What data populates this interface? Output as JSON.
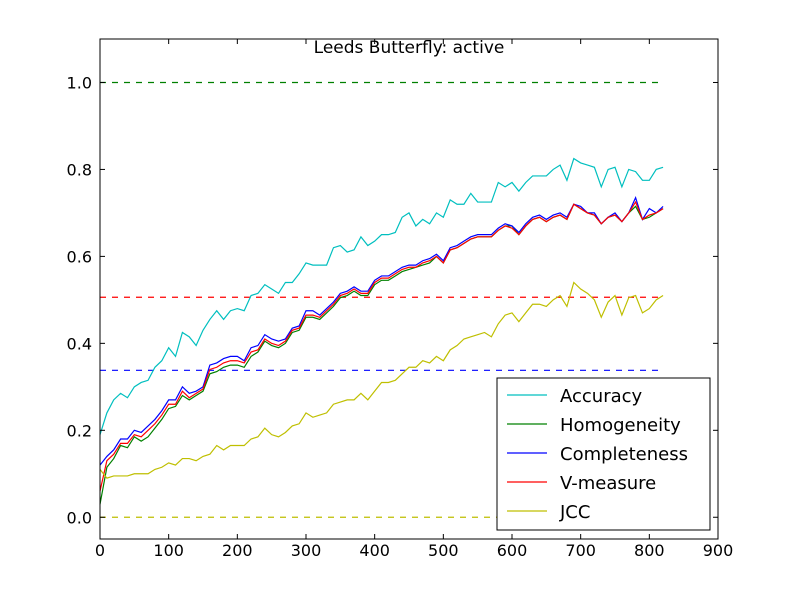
{
  "chart_data": {
    "type": "line",
    "title": "Leeds Butterfly: active",
    "x": [
      0,
      10,
      20,
      30,
      40,
      50,
      60,
      70,
      80,
      90,
      100,
      110,
      120,
      130,
      140,
      150,
      160,
      170,
      180,
      190,
      200,
      210,
      220,
      230,
      240,
      250,
      260,
      270,
      280,
      290,
      300,
      310,
      320,
      330,
      340,
      350,
      360,
      370,
      380,
      390,
      400,
      410,
      420,
      430,
      440,
      450,
      460,
      470,
      480,
      490,
      500,
      510,
      520,
      530,
      540,
      550,
      560,
      570,
      580,
      590,
      600,
      610,
      620,
      630,
      640,
      650,
      660,
      670,
      680,
      690,
      700,
      710,
      720,
      730,
      740,
      750,
      760,
      770,
      780,
      790,
      800,
      810,
      820
    ],
    "series": [
      {
        "name": "Accuracy",
        "color": "#00bfbf",
        "values": [
          0.19,
          0.24,
          0.27,
          0.285,
          0.275,
          0.3,
          0.31,
          0.315,
          0.345,
          0.36,
          0.39,
          0.37,
          0.425,
          0.415,
          0.395,
          0.43,
          0.455,
          0.475,
          0.455,
          0.475,
          0.48,
          0.475,
          0.51,
          0.515,
          0.535,
          0.525,
          0.515,
          0.54,
          0.54,
          0.56,
          0.585,
          0.58,
          0.58,
          0.58,
          0.62,
          0.625,
          0.61,
          0.615,
          0.645,
          0.625,
          0.635,
          0.65,
          0.65,
          0.655,
          0.69,
          0.7,
          0.67,
          0.685,
          0.675,
          0.7,
          0.69,
          0.73,
          0.72,
          0.72,
          0.745,
          0.725,
          0.725,
          0.725,
          0.77,
          0.76,
          0.77,
          0.75,
          0.77,
          0.785,
          0.785,
          0.785,
          0.8,
          0.81,
          0.775,
          0.825,
          0.815,
          0.81,
          0.805,
          0.76,
          0.8,
          0.805,
          0.76,
          0.8,
          0.795,
          0.775,
          0.775,
          0.8,
          0.805
        ]
      },
      {
        "name": "Homogeneity",
        "color": "#008000",
        "values": [
          0.03,
          0.115,
          0.135,
          0.165,
          0.16,
          0.185,
          0.175,
          0.185,
          0.205,
          0.225,
          0.25,
          0.255,
          0.28,
          0.27,
          0.28,
          0.29,
          0.33,
          0.335,
          0.345,
          0.35,
          0.35,
          0.345,
          0.37,
          0.38,
          0.405,
          0.395,
          0.39,
          0.4,
          0.425,
          0.43,
          0.46,
          0.46,
          0.455,
          0.47,
          0.485,
          0.505,
          0.51,
          0.52,
          0.51,
          0.51,
          0.535,
          0.545,
          0.545,
          0.555,
          0.565,
          0.57,
          0.575,
          0.58,
          0.585,
          0.6,
          0.585,
          0.615,
          0.62,
          0.63,
          0.64,
          0.645,
          0.645,
          0.645,
          0.66,
          0.67,
          0.67,
          0.65,
          0.67,
          0.685,
          0.69,
          0.68,
          0.69,
          0.695,
          0.685,
          0.72,
          0.71,
          0.7,
          0.695,
          0.675,
          0.69,
          0.695,
          0.68,
          0.7,
          0.715,
          0.685,
          0.69,
          0.7,
          0.71
        ]
      },
      {
        "name": "Completeness",
        "color": "#0000ff",
        "values": [
          0.12,
          0.14,
          0.155,
          0.18,
          0.18,
          0.2,
          0.195,
          0.21,
          0.225,
          0.245,
          0.27,
          0.27,
          0.3,
          0.285,
          0.29,
          0.3,
          0.35,
          0.355,
          0.365,
          0.37,
          0.37,
          0.36,
          0.39,
          0.395,
          0.42,
          0.41,
          0.405,
          0.41,
          0.435,
          0.44,
          0.475,
          0.475,
          0.465,
          0.48,
          0.495,
          0.515,
          0.52,
          0.53,
          0.52,
          0.52,
          0.545,
          0.555,
          0.555,
          0.565,
          0.575,
          0.58,
          0.58,
          0.59,
          0.595,
          0.605,
          0.59,
          0.62,
          0.625,
          0.635,
          0.645,
          0.65,
          0.65,
          0.65,
          0.665,
          0.675,
          0.67,
          0.655,
          0.675,
          0.69,
          0.695,
          0.685,
          0.695,
          0.7,
          0.69,
          0.72,
          0.715,
          0.7,
          0.7,
          0.675,
          0.69,
          0.7,
          0.68,
          0.7,
          0.735,
          0.685,
          0.71,
          0.7,
          0.715
        ]
      },
      {
        "name": "V-measure",
        "color": "#ff0000",
        "values": [
          0.06,
          0.13,
          0.145,
          0.17,
          0.17,
          0.19,
          0.185,
          0.2,
          0.215,
          0.235,
          0.26,
          0.26,
          0.29,
          0.275,
          0.285,
          0.295,
          0.34,
          0.345,
          0.355,
          0.36,
          0.36,
          0.355,
          0.38,
          0.385,
          0.41,
          0.4,
          0.395,
          0.405,
          0.43,
          0.435,
          0.465,
          0.465,
          0.46,
          0.475,
          0.49,
          0.51,
          0.515,
          0.525,
          0.515,
          0.515,
          0.54,
          0.55,
          0.55,
          0.56,
          0.57,
          0.575,
          0.575,
          0.585,
          0.59,
          0.6,
          0.585,
          0.615,
          0.62,
          0.63,
          0.64,
          0.645,
          0.645,
          0.645,
          0.66,
          0.67,
          0.665,
          0.65,
          0.67,
          0.685,
          0.69,
          0.68,
          0.69,
          0.695,
          0.685,
          0.72,
          0.71,
          0.7,
          0.695,
          0.675,
          0.69,
          0.695,
          0.68,
          0.7,
          0.725,
          0.685,
          0.695,
          0.7,
          0.71
        ]
      },
      {
        "name": "JCC",
        "color": "#bfbf00",
        "values": [
          0.11,
          0.09,
          0.095,
          0.095,
          0.095,
          0.1,
          0.1,
          0.1,
          0.11,
          0.115,
          0.125,
          0.12,
          0.135,
          0.135,
          0.13,
          0.14,
          0.145,
          0.165,
          0.155,
          0.165,
          0.165,
          0.165,
          0.18,
          0.185,
          0.205,
          0.19,
          0.185,
          0.195,
          0.21,
          0.215,
          0.24,
          0.23,
          0.235,
          0.24,
          0.26,
          0.265,
          0.27,
          0.27,
          0.285,
          0.27,
          0.29,
          0.31,
          0.31,
          0.315,
          0.33,
          0.345,
          0.345,
          0.36,
          0.355,
          0.37,
          0.36,
          0.385,
          0.395,
          0.41,
          0.415,
          0.42,
          0.425,
          0.415,
          0.445,
          0.465,
          0.47,
          0.45,
          0.47,
          0.49,
          0.49,
          0.485,
          0.5,
          0.51,
          0.485,
          0.54,
          0.525,
          0.515,
          0.5,
          0.46,
          0.495,
          0.51,
          0.465,
          0.505,
          0.51,
          0.47,
          0.48,
          0.5,
          0.51
        ]
      }
    ],
    "hlines": [
      {
        "value": 1.0,
        "color": "#008000"
      },
      {
        "value": 0.506,
        "color": "#ff0000"
      },
      {
        "value": 0.338,
        "color": "#0000ff"
      },
      {
        "value": 0.0,
        "color": "#bfbf00"
      }
    ],
    "xlim": [
      0,
      900
    ],
    "xticks": [
      0,
      100,
      200,
      300,
      400,
      500,
      600,
      700,
      800,
      900
    ],
    "ylim": [
      -0.05,
      1.1
    ],
    "yticks": [
      {
        "value": 0,
        "label": "0.0"
      },
      0.2,
      0.4,
      0.6,
      0.8,
      {
        "value": 1,
        "label": "1.0"
      }
    ],
    "legend": "lower right"
  }
}
